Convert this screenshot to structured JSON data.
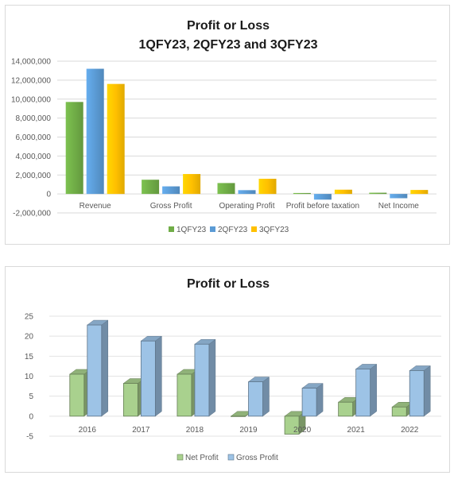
{
  "chart_data": [
    {
      "type": "bar",
      "title": "Profit or Loss",
      "subtitle": "1QFY23, 2QFY23 and 3QFY23",
      "categories": [
        "Revenue",
        "Gross Profit",
        "Operating Profit",
        "Profit before taxation",
        "Net Income"
      ],
      "series": [
        {
          "name": "1QFY23",
          "color": "#70ad47",
          "values": [
            9700000,
            1500000,
            1150000,
            100000,
            130000
          ]
        },
        {
          "name": "2QFY23",
          "color": "#5b9bd5",
          "values": [
            13200000,
            800000,
            400000,
            -600000,
            -450000
          ]
        },
        {
          "name": "3QFY23",
          "color": "#ffc000",
          "values": [
            11600000,
            2100000,
            1600000,
            450000,
            420000
          ]
        }
      ],
      "yticks": [
        "14,000,000",
        "12,000,000",
        "10,000,000",
        "8,000,000",
        "6,000,000",
        "4,000,000",
        "2,000,000",
        "0",
        "-2,000,000"
      ],
      "ylim": [
        -2000000,
        14000000
      ],
      "grid": true,
      "legend": "bottom"
    },
    {
      "type": "bar",
      "title": "Profit or Loss",
      "categories": [
        "2016",
        "2017",
        "2018",
        "2019",
        "2020",
        "2021",
        "2022"
      ],
      "series": [
        {
          "name": "Net Profit",
          "color": "#a9d18e",
          "values": [
            10.5,
            8.2,
            10.5,
            0,
            -4.5,
            3.5,
            2.3
          ]
        },
        {
          "name": "Gross Profit",
          "color": "#9dc3e6",
          "values": [
            22.8,
            18.8,
            18,
            8.6,
            7,
            11.8,
            11.4
          ]
        }
      ],
      "yticks": [
        "25",
        "20",
        "15",
        "10",
        "5",
        "0",
        "-5"
      ],
      "ylim": [
        -5,
        25
      ],
      "grid": true,
      "legend": "bottom"
    }
  ]
}
